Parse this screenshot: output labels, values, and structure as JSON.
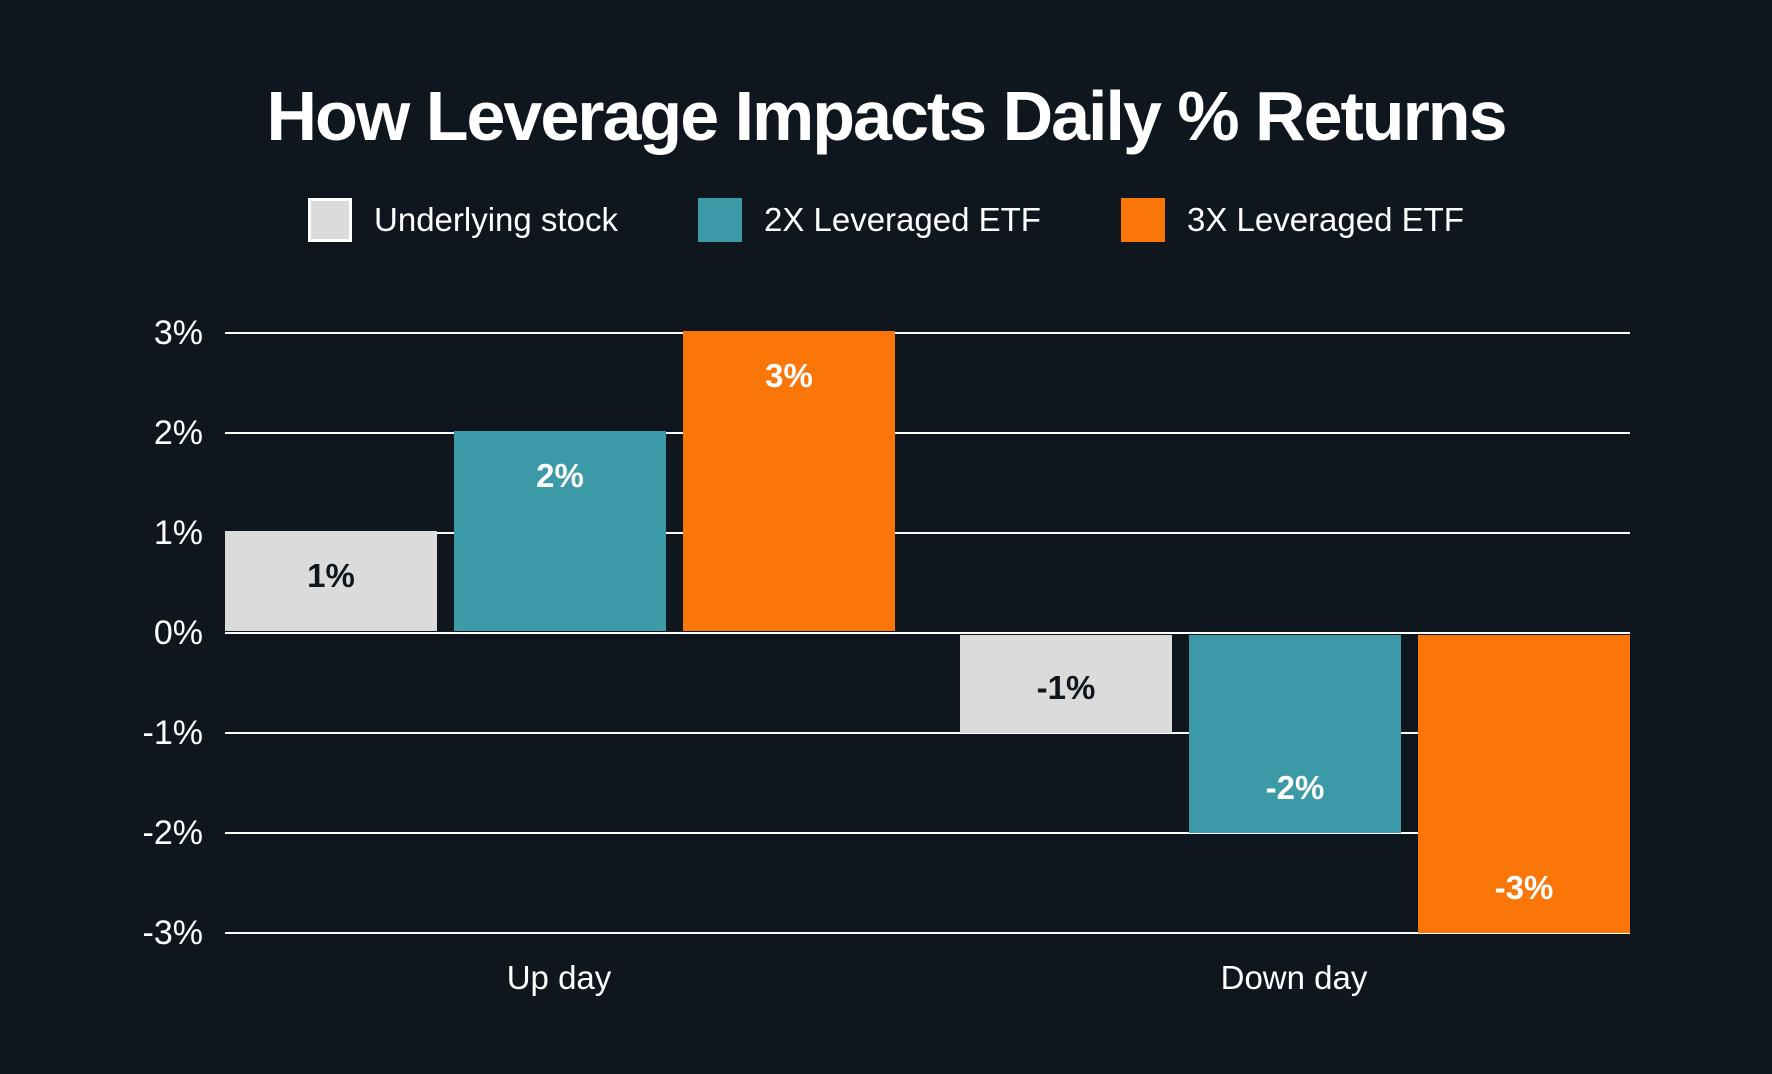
{
  "page": {
    "background_color": "#0F161D",
    "text_color": "#FFFFFF"
  },
  "chart_data": {
    "type": "bar",
    "title": "How Leverage Impacts Daily % Returns",
    "xlabel": "",
    "ylabel": "",
    "categories": [
      "Up day",
      "Down day"
    ],
    "series": [
      {
        "name": "Underlying stock",
        "color": "#DBDBDB",
        "swatch_border": "#FFFFFF",
        "label_color": "#10161C",
        "values": [
          1,
          -1
        ],
        "labels": [
          "1%",
          "-1%"
        ]
      },
      {
        "name": "2X Leveraged ETF",
        "color": "#3C99A6",
        "swatch_border": null,
        "label_color": "#FFFFFF",
        "values": [
          2,
          -2
        ],
        "labels": [
          "2%",
          "-2%"
        ]
      },
      {
        "name": "3X Leveraged ETF",
        "color": "#FA7608",
        "swatch_border": null,
        "label_color": "#FFFFFF",
        "values": [
          3,
          -3
        ],
        "labels": [
          "3%",
          "-3%"
        ]
      }
    ],
    "yticks": [
      {
        "value": 3,
        "label": "3%"
      },
      {
        "value": 2,
        "label": "2%"
      },
      {
        "value": 1,
        "label": "1%"
      },
      {
        "value": 0,
        "label": "0%"
      },
      {
        "value": -1,
        "label": "-1%"
      },
      {
        "value": -2,
        "label": "-2%"
      },
      {
        "value": -3,
        "label": "-3%"
      }
    ],
    "ylim": [
      -3,
      3
    ],
    "grid": true,
    "gridline_color": "#FFFFFF",
    "legend_position": "top"
  }
}
